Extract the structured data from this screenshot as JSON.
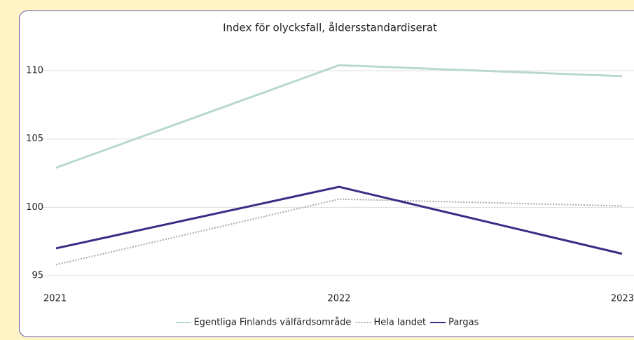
{
  "chart_data": {
    "type": "line",
    "title": "Index för olycksfall, åldersstandardiserat",
    "categories": [
      "2021",
      "2022",
      "2023"
    ],
    "series": [
      {
        "name": "Egentliga Finlands välfärdsområde",
        "color": "#b9d9cc",
        "style": "solid",
        "values": [
          102.9,
          110.4,
          109.6
        ]
      },
      {
        "name": "Hela landet",
        "color": "#aaaaaa",
        "style": "dotted",
        "values": [
          95.8,
          100.6,
          100.1
        ]
      },
      {
        "name": "Pargas",
        "color": "#3f2a85",
        "style": "solid",
        "values": [
          97.0,
          101.5,
          96.6
        ]
      }
    ],
    "ylim": [
      95,
      112
    ],
    "yticks": [
      95,
      100,
      105,
      110
    ],
    "grid": true,
    "legend": "bottom"
  }
}
